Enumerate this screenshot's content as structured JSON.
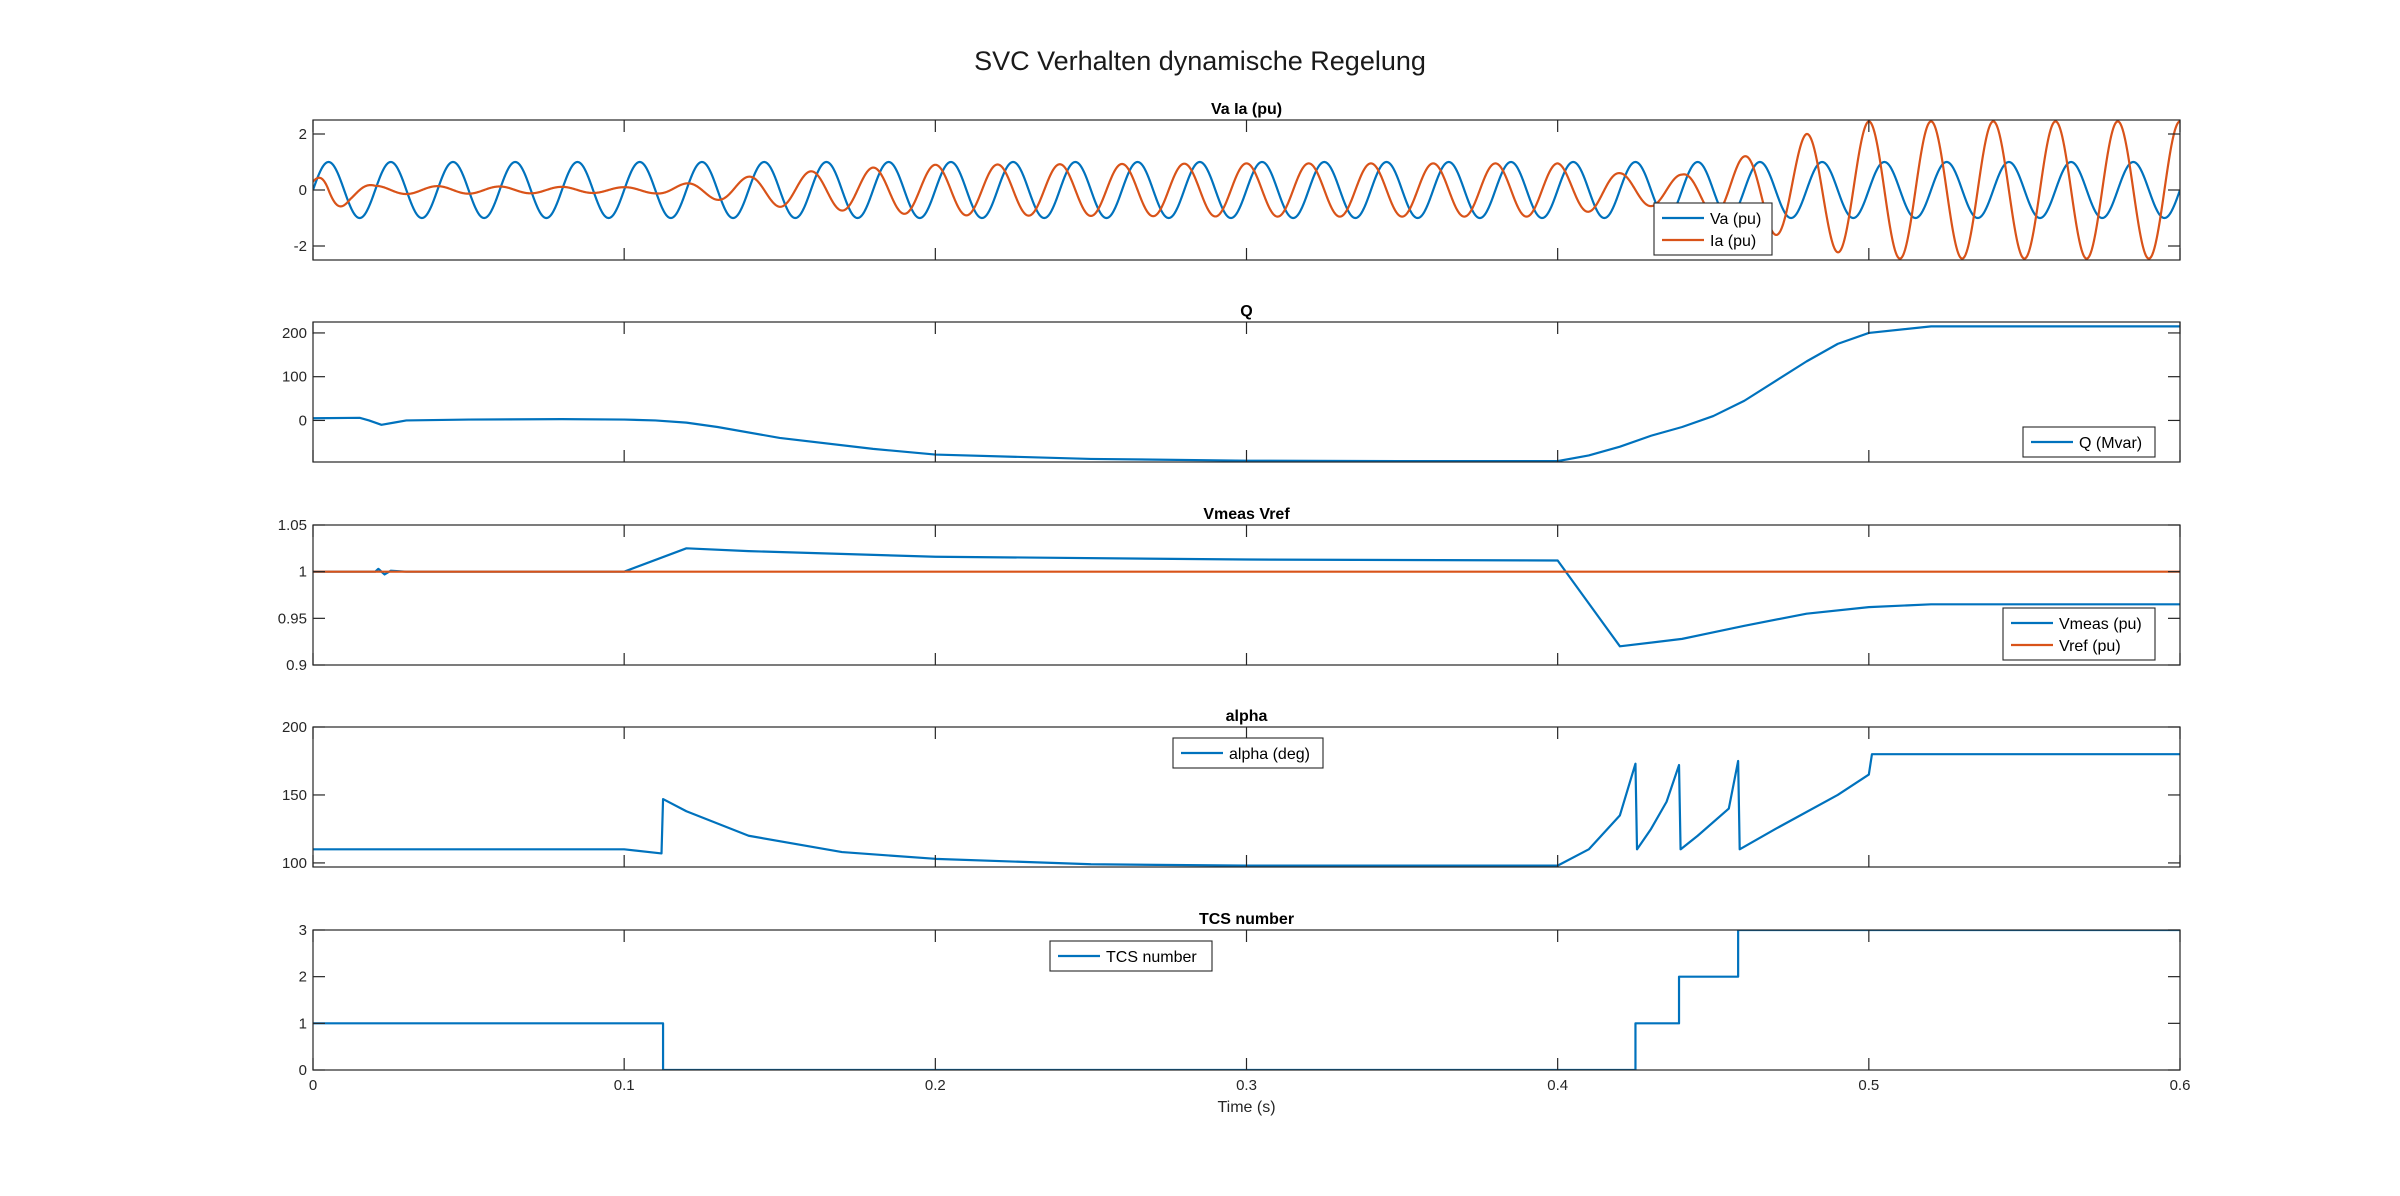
{
  "figure": {
    "title": "SVC Verhalten dynamische Regelung"
  },
  "colors": {
    "blue": "#0072BD",
    "orange": "#D95319",
    "axes": "#262626"
  },
  "chart_data": [
    {
      "type": "line",
      "title": "Va Ia (pu)",
      "xlim": [
        0,
        0.6
      ],
      "ylim": [
        -2.5,
        2.5
      ],
      "yticks": [
        -2,
        0,
        2
      ],
      "yticklabels": [
        "-2",
        "0",
        "2"
      ],
      "legend": {
        "location": "bottom-right-inner",
        "entries": [
          "Va (pu)",
          "Ia (pu)"
        ]
      },
      "series": [
        {
          "name": "Va (pu)",
          "color": "#0072BD",
          "kind": "sine",
          "frequency_hz": 50,
          "amplitude": 1.0,
          "phase_deg": 0
        },
        {
          "name": "Ia (pu)",
          "color": "#D95319",
          "kind": "sine_envelope",
          "frequency_hz": 50,
          "phase_deg": 90,
          "envelope_t": [
            0,
            0.005,
            0.012,
            0.02,
            0.1,
            0.11,
            0.13,
            0.15,
            0.18,
            0.2,
            0.3,
            0.4,
            0.42,
            0.44,
            0.46,
            0.48,
            0.5,
            0.55,
            0.6
          ],
          "envelope_a": [
            0.3,
            0.9,
            0.4,
            0.15,
            0.1,
            0.12,
            0.35,
            0.6,
            0.8,
            0.9,
            0.95,
            0.95,
            0.6,
            0.55,
            1.2,
            2.0,
            2.45,
            2.45,
            2.45
          ]
        }
      ]
    },
    {
      "type": "line",
      "title": "Q",
      "xlim": [
        0,
        0.6
      ],
      "ylim": [
        -95,
        225
      ],
      "yticks": [
        0,
        100,
        200
      ],
      "yticklabels": [
        "0",
        "100",
        "200"
      ],
      "legend": {
        "location": "bottom-right-inner",
        "entries": [
          "Q (Mvar)"
        ]
      },
      "series": [
        {
          "name": "Q (Mvar)",
          "color": "#0072BD",
          "x": [
            0,
            0.015,
            0.018,
            0.022,
            0.026,
            0.03,
            0.05,
            0.08,
            0.1,
            0.11,
            0.12,
            0.13,
            0.15,
            0.18,
            0.2,
            0.25,
            0.3,
            0.35,
            0.4,
            0.41,
            0.42,
            0.43,
            0.44,
            0.45,
            0.46,
            0.47,
            0.48,
            0.49,
            0.5,
            0.52,
            0.6
          ],
          "y": [
            5,
            6,
            0,
            -10,
            -5,
            0,
            2,
            3,
            2,
            0,
            -5,
            -15,
            -40,
            -65,
            -78,
            -88,
            -92,
            -93,
            -93,
            -80,
            -60,
            -35,
            -15,
            10,
            45,
            90,
            135,
            175,
            200,
            215,
            215
          ]
        }
      ]
    },
    {
      "type": "line",
      "title": "Vmeas Vref",
      "xlim": [
        0,
        0.6
      ],
      "ylim": [
        0.9,
        1.05
      ],
      "yticks": [
        0.9,
        0.95,
        1,
        1.05
      ],
      "yticklabels": [
        "0.9",
        "0.95",
        "1",
        "1.05"
      ],
      "legend": {
        "location": "bottom-right-inner",
        "entries": [
          "Vmeas (pu)",
          "Vref (pu)"
        ]
      },
      "series": [
        {
          "name": "Vmeas (pu)",
          "color": "#0072BD",
          "x": [
            0,
            0.02,
            0.021,
            0.023,
            0.025,
            0.03,
            0.1,
            0.12,
            0.14,
            0.2,
            0.3,
            0.4,
            0.42,
            0.44,
            0.46,
            0.48,
            0.5,
            0.52,
            0.6
          ],
          "y": [
            1.0,
            1.0,
            1.003,
            0.997,
            1.001,
            1.0,
            1.0,
            1.025,
            1.022,
            1.016,
            1.013,
            1.012,
            0.92,
            0.928,
            0.942,
            0.955,
            0.962,
            0.965,
            0.965
          ]
        },
        {
          "name": "Vref (pu)",
          "color": "#D95319",
          "x": [
            0,
            0.6
          ],
          "y": [
            1.0,
            1.0
          ]
        }
      ]
    },
    {
      "type": "line",
      "title": "alpha",
      "xlim": [
        0,
        0.6
      ],
      "ylim": [
        97,
        200
      ],
      "yticks": [
        100,
        150,
        200
      ],
      "yticklabels": [
        "100",
        "150",
        "200"
      ],
      "legend": {
        "location": "top-center",
        "entries": [
          "alpha (deg)"
        ]
      },
      "series": [
        {
          "name": "alpha (deg)",
          "color": "#0072BD",
          "x": [
            0,
            0.05,
            0.1,
            0.112,
            0.1125,
            0.12,
            0.14,
            0.17,
            0.2,
            0.25,
            0.3,
            0.35,
            0.4,
            0.41,
            0.42,
            0.425,
            0.4255,
            0.43,
            0.435,
            0.439,
            0.4395,
            0.445,
            0.455,
            0.458,
            0.4585,
            0.47,
            0.49,
            0.5,
            0.501,
            0.6
          ],
          "y": [
            110,
            110,
            110,
            107,
            147,
            138,
            120,
            108,
            103,
            99,
            98,
            98,
            98,
            110,
            135,
            173,
            110,
            125,
            145,
            172,
            110,
            120,
            140,
            175,
            110,
            125,
            150,
            165,
            180,
            180
          ]
        }
      ]
    },
    {
      "type": "line",
      "title": "TCS number",
      "xlim": [
        0,
        0.6
      ],
      "ylim": [
        0,
        3
      ],
      "yticks": [
        0,
        1,
        2,
        3
      ],
      "yticklabels": [
        "0",
        "1",
        "2",
        "3"
      ],
      "xticks": [
        0,
        0.1,
        0.2,
        0.3,
        0.4,
        0.5,
        0.6
      ],
      "xticklabels": [
        "0",
        "0.1",
        "0.2",
        "0.3",
        "0.4",
        "0.5",
        "0.6"
      ],
      "xlabel": "Time (s)",
      "legend": {
        "location": "top-left-center",
        "entries": [
          "TCS number"
        ]
      },
      "series": [
        {
          "name": "TCS number",
          "color": "#0072BD",
          "x": [
            0,
            0.1125,
            0.1125,
            0.425,
            0.425,
            0.439,
            0.439,
            0.458,
            0.458,
            0.6
          ],
          "y": [
            1,
            1,
            0,
            0,
            1,
            1,
            2,
            2,
            3,
            3
          ]
        }
      ]
    }
  ]
}
